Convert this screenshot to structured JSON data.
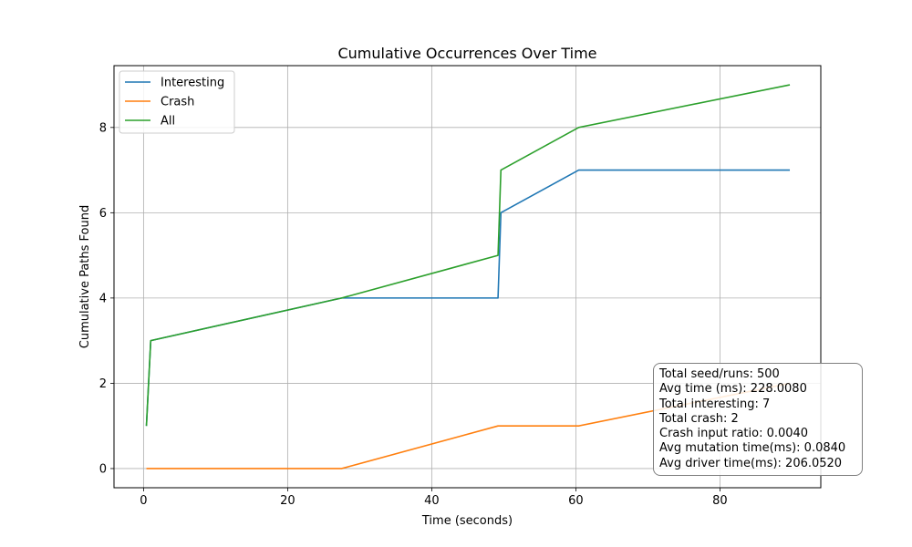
{
  "chart_data": {
    "type": "line",
    "title": "Cumulative Occurrences Over Time",
    "xlabel": "Time (seconds)",
    "ylabel": "Cumulative Paths Found",
    "xlim": [
      -4.1,
      94
    ],
    "ylim": [
      -0.45,
      9.45
    ],
    "xticks": [
      0,
      20,
      40,
      60,
      80
    ],
    "yticks": [
      0,
      2,
      4,
      6,
      8
    ],
    "grid": true,
    "legend_position": "upper-left",
    "series": [
      {
        "name": "Interesting",
        "color": "#1f77b4",
        "x": [
          0.4,
          1.0,
          27.5,
          49.2,
          49.6,
          60.4,
          89.7
        ],
        "y": [
          1,
          3,
          4,
          4,
          6,
          7,
          7
        ]
      },
      {
        "name": "Crash",
        "color": "#ff7f0e",
        "x": [
          0.4,
          27.5,
          49.2,
          60.4,
          89.7
        ],
        "y": [
          0,
          0,
          1,
          1,
          2
        ]
      },
      {
        "name": "All",
        "color": "#2ca02c",
        "x": [
          0.4,
          1.0,
          27.5,
          49.2,
          49.6,
          60.4,
          89.7
        ],
        "y": [
          1,
          3,
          4,
          5,
          7,
          8,
          9
        ]
      }
    ]
  },
  "stats": [
    "Total seed/runs: 500",
    "Avg time (ms): 228.0080",
    "Total interesting: 7",
    "Total crash: 2",
    "Crash input ratio: 0.0040",
    "Avg mutation time(ms): 0.0840",
    "Avg driver time(ms): 206.0520"
  ]
}
